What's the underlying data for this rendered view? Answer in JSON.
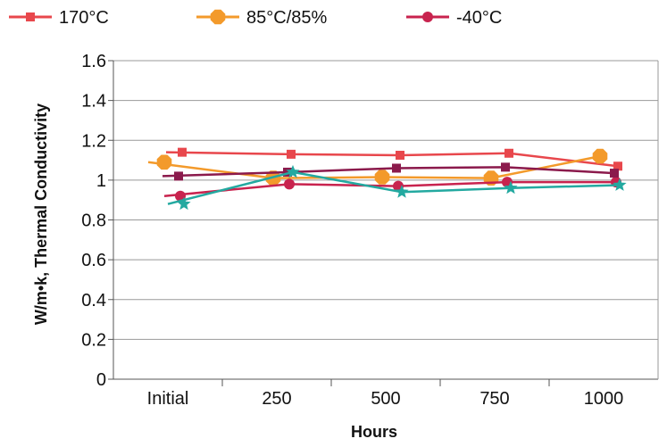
{
  "chart_data": {
    "type": "line",
    "categories": [
      "Initial",
      "250",
      "500",
      "750",
      "1000"
    ],
    "xlabel": "Hours",
    "ylabel": "W/m•k, Thermal Conductivity",
    "ylim": [
      0,
      1.6
    ],
    "yticks": [
      "0",
      "0.2",
      "0.4",
      "0.6",
      "0.8",
      "1",
      "1.2",
      "1.4",
      "1.6"
    ],
    "grid": "horizontal",
    "legend_position": "top",
    "series": [
      {
        "name": "170°C",
        "color": "#e8474c",
        "marker": "square",
        "values": [
          1.14,
          1.13,
          1.125,
          1.135,
          1.07
        ]
      },
      {
        "name": "85°C/85%",
        "color": "#f39a2b",
        "marker": "octagon",
        "values": [
          1.09,
          1.01,
          1.015,
          1.01,
          1.12
        ]
      },
      {
        "name": "-40°C",
        "color": "#c8234e",
        "marker": "circle",
        "values": [
          0.92,
          0.98,
          0.97,
          0.99,
          0.99
        ]
      },
      {
        "name": "",
        "color": "#8b1a4c",
        "marker": "square",
        "values": [
          1.02,
          1.04,
          1.06,
          1.065,
          1.035
        ]
      },
      {
        "name": "",
        "color": "#23a9a0",
        "marker": "star",
        "values": [
          0.88,
          1.04,
          0.94,
          0.96,
          0.975
        ]
      }
    ]
  }
}
